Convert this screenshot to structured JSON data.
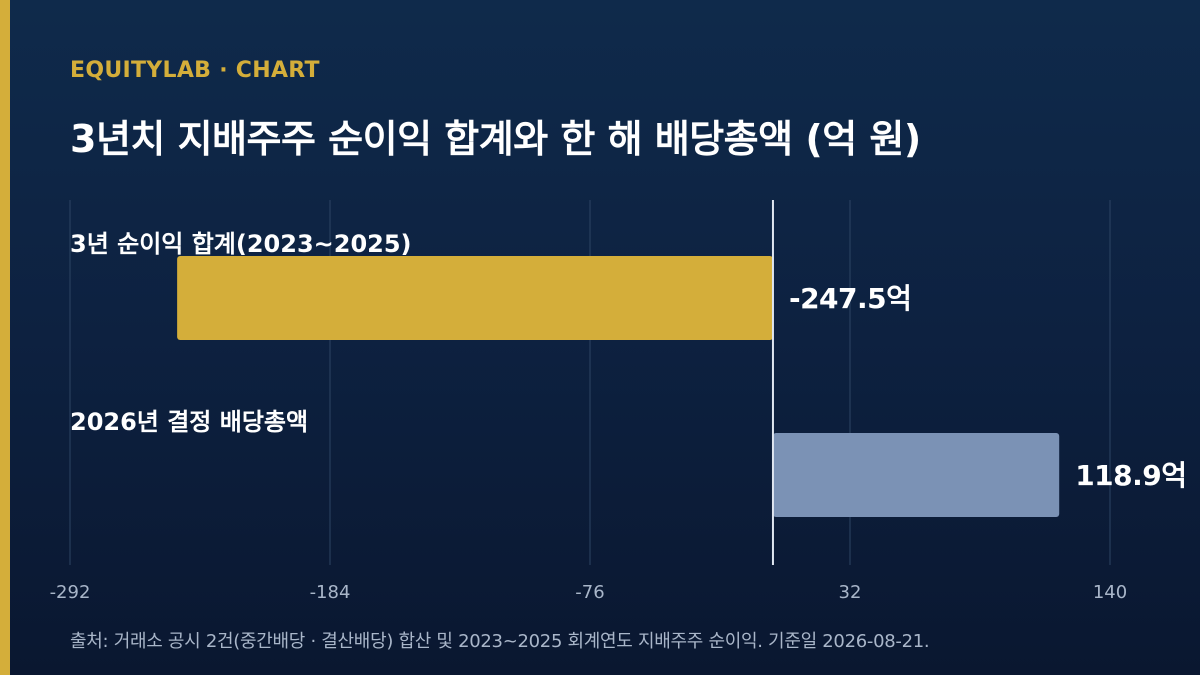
{
  "brand": "EQUITYLAB · CHART",
  "title": "3년치 지배주주 순이익 합계와 한 해 배당총액 (억 원)",
  "source": "출처: 거래소 공시 2건(중간배당 · 결산배당) 합산 및 2023~2025 회계연도 지배주주 순이익. 기준일 2026-08-21.",
  "colors": {
    "background": "#0d2140",
    "accent": "#d4ae3a",
    "bar_profit": "#d4ae3a",
    "bar_dividend": "#7b92b5",
    "grid": "#2d4463",
    "tick_text": "#a9b6c9"
  },
  "chart_data": {
    "type": "bar",
    "orientation": "horizontal",
    "categories": [
      "3년 순이익 합계(2023~2025)",
      "2026년 결정 배당총액"
    ],
    "values": [
      -247.5,
      118.9
    ],
    "value_labels": [
      "-247.5억",
      "118.9억"
    ],
    "unit": "억",
    "xlim": [
      -292,
      140
    ],
    "xticks": [
      -292,
      -184,
      -76,
      32,
      140
    ],
    "grid": true,
    "legend": "none"
  }
}
